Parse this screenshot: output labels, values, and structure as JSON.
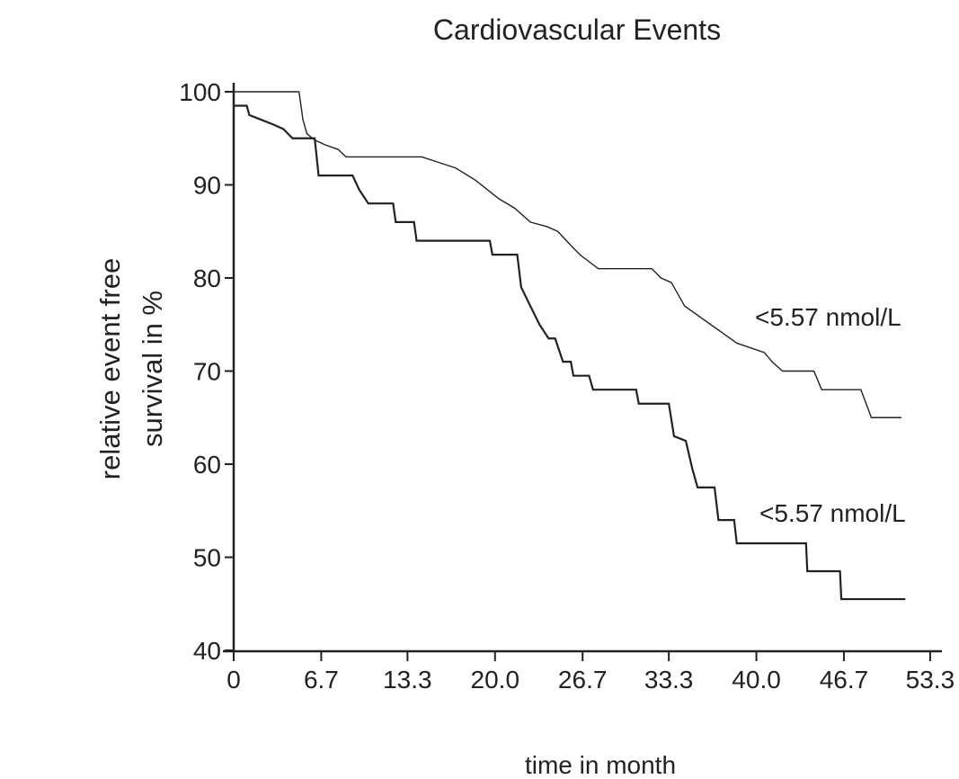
{
  "chart_data": {
    "type": "line",
    "title": "Cardiovascular Events",
    "xlabel": "time in month",
    "ylabel": [
      "relative event free",
      "survival in %"
    ],
    "xlim": [
      0,
      54.2
    ],
    "ylim": [
      40,
      100
    ],
    "xticks": [
      0,
      6.7,
      13.3,
      {
        "value": 20,
        "label": "20.0"
      },
      26.7,
      33.3,
      {
        "value": 40,
        "label": "40.0"
      },
      46.7,
      53.3
    ],
    "yticks": [
      40,
      50,
      60,
      70,
      80,
      90,
      100
    ],
    "series": [
      {
        "name": "<5.57 nmol/L",
        "color": "#222222",
        "x": [
          0,
          5.0,
          5.3,
          5.6,
          6.2,
          7.0,
          8.0,
          8.6,
          14.4,
          15.5,
          17.0,
          18.5,
          20.3,
          21.5,
          22.7,
          24.0,
          24.8,
          25.8,
          26.5,
          27.9,
          32.0,
          32.7,
          33.5,
          34.5,
          35.5,
          36.5,
          37.5,
          38.5,
          40.6,
          41.2,
          42.0,
          44.4,
          45.0,
          48.0,
          48.8,
          51.1
        ],
        "values": [
          100,
          100,
          97,
          95.5,
          94.8,
          94.3,
          93.8,
          93,
          93,
          92.5,
          91.8,
          90.5,
          88.5,
          87.5,
          86,
          85.5,
          85,
          83.5,
          82.5,
          81,
          81,
          80,
          79.5,
          77,
          76,
          75,
          74,
          73,
          72,
          71,
          70,
          70,
          68,
          68,
          65,
          65
        ]
      },
      {
        "name": "<5.57 nmol/L",
        "color": "#222222",
        "x": [
          0,
          1.0,
          1.2,
          2.1,
          3.0,
          3.8,
          4.5,
          6.2,
          6.5,
          9.1,
          9.6,
          10.3,
          12.2,
          12.4,
          13.8,
          14.0,
          19.6,
          19.8,
          21.7,
          22.0,
          22.7,
          23.4,
          24.1,
          24.6,
          25.2,
          25.8,
          26.0,
          27.2,
          27.5,
          30.8,
          31.0,
          33.3,
          33.7,
          34.6,
          35.1,
          35.5,
          36.8,
          37.1,
          38.3,
          38.5,
          43.8,
          43.9,
          46.4,
          46.5,
          51.4
        ],
        "values": [
          98.5,
          98.5,
          97.5,
          97,
          96.5,
          96,
          95,
          95,
          91,
          91,
          89.5,
          88,
          88,
          86,
          86,
          84,
          84,
          82.5,
          82.5,
          79,
          77,
          75,
          73.5,
          73.5,
          71,
          71,
          69.5,
          69.5,
          68,
          68,
          66.5,
          66.5,
          63,
          62.5,
          59.5,
          57.5,
          57.5,
          54,
          54,
          51.5,
          51.5,
          48.5,
          48.5,
          45.5,
          45.5
        ]
      }
    ]
  }
}
